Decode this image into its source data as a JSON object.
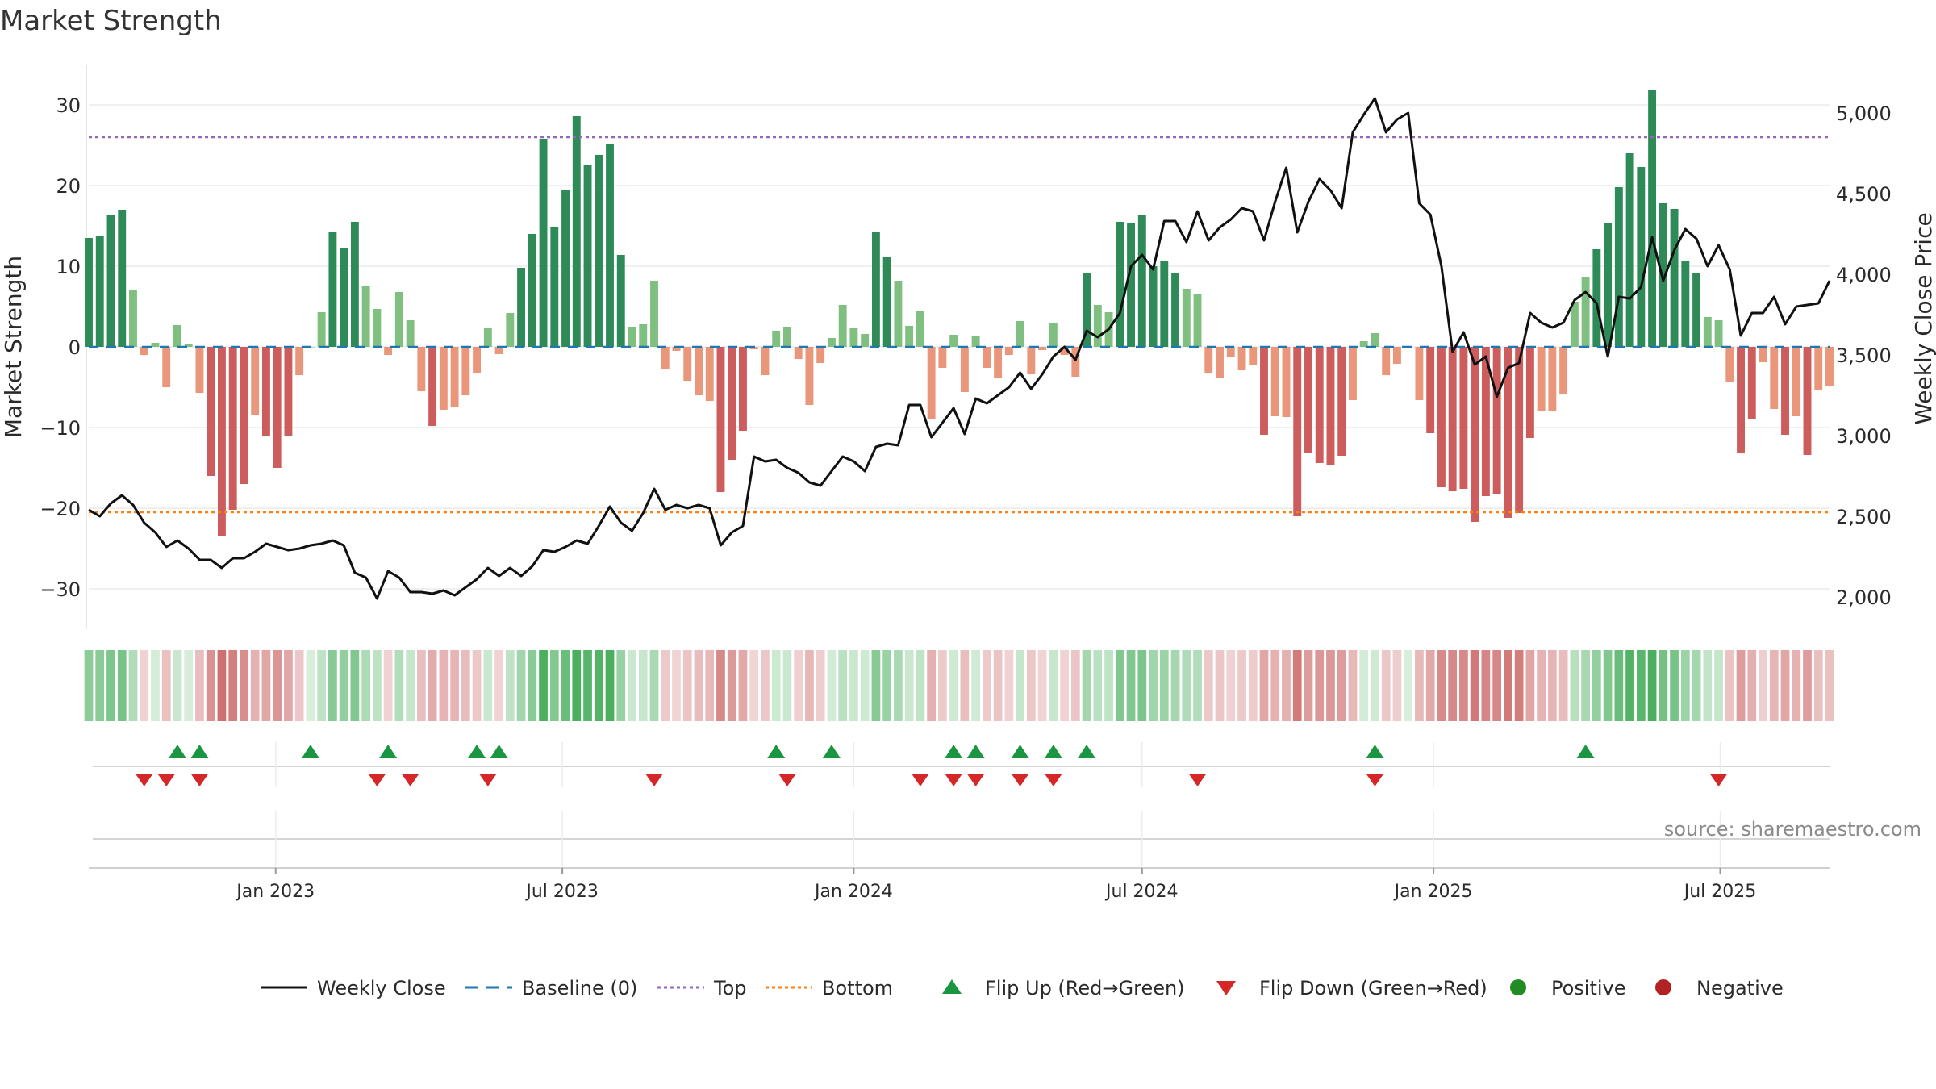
{
  "title": "Market Strength",
  "source": "source: sharemaestro.com",
  "chart_data": {
    "type": "bar",
    "ylabel": "Market Strength",
    "y2label": "Weekly Close Price",
    "ylim": [
      -35,
      35
    ],
    "y2lim": [
      1800,
      5300
    ],
    "yticks": [
      30,
      20,
      10,
      0,
      -10,
      -20,
      -30
    ],
    "ytick_labels": [
      "30",
      "20",
      "10",
      "0",
      "−10",
      "−20",
      "−30"
    ],
    "y2ticks": [
      5000,
      4500,
      4000,
      3500,
      3000,
      2500,
      2000
    ],
    "y2tick_labels": [
      "5,000",
      "4,500",
      "4,000",
      "3,500",
      "3,000",
      "2,500",
      "2,000"
    ],
    "x_start": "2022-09-05",
    "x_end": "2025-09-08",
    "xtick_dates": [
      "2023-01-01",
      "2023-07-01",
      "2024-01-01",
      "2024-07-01",
      "2025-01-01",
      "2025-07-01"
    ],
    "xtick_labels": [
      "Jan 2023",
      "Jul 2023",
      "Jan 2024",
      "Jul 2024",
      "Jan 2025",
      "Jul 2025"
    ],
    "top_line": 26,
    "bottom_line": -20.5,
    "grid": true,
    "legend_position": "bottom",
    "colors": {
      "pos_strong": "#2e8b57",
      "pos_weak": "#7fbf7f",
      "neg_strong": "#cd5c5c",
      "neg_weak": "#e9967a",
      "close": "#111111",
      "baseline": "#1f77b4",
      "top": "#9467bd",
      "bottom": "#ff7f0e",
      "flip_up": "#1a9641",
      "flip_down": "#d62728",
      "positive": "#228b22",
      "negative": "#b22222"
    },
    "strength": [
      13.5,
      13.8,
      16.3,
      17,
      7,
      -1,
      0.5,
      -5,
      2.7,
      0.3,
      -5.7,
      -16,
      -23.5,
      -20.2,
      -17,
      -8.5,
      -11,
      -15,
      -11,
      -3.5,
      0,
      4.3,
      14.2,
      12.3,
      15.5,
      7.5,
      4.7,
      -1,
      6.8,
      3.3,
      -5.5,
      -9.8,
      -7.8,
      -7.5,
      -6,
      -3.3,
      2.3,
      -0.9,
      4.2,
      9.8,
      14,
      25.8,
      14.9,
      19.5,
      28.6,
      22.6,
      23.8,
      25.2,
      11.4,
      2.5,
      2.8,
      8.2,
      -2.8,
      -0.5,
      -4.2,
      -6,
      -6.7,
      -18,
      -14,
      -10.4,
      -0.3,
      -3.5,
      2,
      2.5,
      -1.5,
      -7.2,
      -2,
      1.1,
      5.2,
      2.4,
      1.6,
      14.2,
      11.2,
      8.2,
      2.6,
      4.4,
      -8.9,
      -2.6,
      1.5,
      -5.6,
      1.3,
      -2.6,
      -3.9,
      -1,
      3.2,
      -3.4,
      -0.4,
      2.9,
      -1,
      -3.7,
      9.1,
      5.2,
      4.3,
      15.5,
      15.3,
      16.3,
      10,
      10.7,
      9.1,
      7.2,
      6.6,
      -3.2,
      -3.8,
      -1.2,
      -2.9,
      -2.2,
      -10.9,
      -8.6,
      -8.7,
      -21,
      -13.1,
      -14.4,
      -14.6,
      -13.5,
      -6.6,
      0.7,
      1.7,
      -3.5,
      -2.1,
      0,
      -6.6,
      -10.7,
      -17.4,
      -17.9,
      -17.6,
      -21.7,
      -18.5,
      -18.3,
      -21.2,
      -20.6,
      -11.3,
      -8,
      -7.9,
      -5.9,
      5.6,
      8.7,
      12.1,
      15.3,
      19.8,
      24,
      22.3,
      31.8,
      17.8,
      17.1,
      10.6,
      9.2,
      3.7,
      3.3,
      -4.3,
      -13.1,
      -9,
      -1.9,
      -7.7,
      -10.9,
      -8.6,
      -13.4,
      -5.3,
      -4.9
    ],
    "closes": [
      2540,
      2500,
      2580,
      2630,
      2570,
      2460,
      2400,
      2310,
      2350,
      2300,
      2230,
      2230,
      2180,
      2240,
      2240,
      2280,
      2330,
      2310,
      2290,
      2300,
      2320,
      2330,
      2350,
      2320,
      2150,
      2120,
      1990,
      2160,
      2120,
      2030,
      2030,
      2020,
      2040,
      2010,
      2060,
      2110,
      2180,
      2130,
      2180,
      2130,
      2190,
      2290,
      2280,
      2310,
      2350,
      2330,
      2440,
      2560,
      2460,
      2410,
      2520,
      2670,
      2540,
      2570,
      2550,
      2570,
      2550,
      2320,
      2400,
      2440,
      2870,
      2840,
      2850,
      2800,
      2770,
      2710,
      2690,
      2780,
      2870,
      2840,
      2780,
      2930,
      2950,
      2940,
      3190,
      3190,
      2990,
      3080,
      3170,
      3010,
      3230,
      3200,
      3250,
      3300,
      3390,
      3290,
      3380,
      3490,
      3550,
      3470,
      3650,
      3610,
      3660,
      3760,
      4050,
      4120,
      4030,
      4330,
      4330,
      4200,
      4390,
      4210,
      4290,
      4340,
      4410,
      4390,
      4210,
      4450,
      4660,
      4260,
      4450,
      4590,
      4520,
      4410,
      4880,
      4990,
      5090,
      4880,
      4960,
      5000,
      4440,
      4370,
      4050,
      3520,
      3640,
      3440,
      3490,
      3240,
      3420,
      3450,
      3760,
      3700,
      3670,
      3700,
      3840,
      3890,
      3820,
      3490,
      3860,
      3850,
      3920,
      4230,
      3960,
      4150,
      4280,
      4220,
      4050,
      4180,
      4030,
      3620,
      3760,
      3760,
      3860,
      3690,
      3800,
      3810,
      3820,
      3960
    ],
    "flip_up_weeks": [
      8,
      10,
      20,
      27,
      35,
      37,
      62,
      67,
      78,
      80,
      84,
      87,
      90,
      116,
      135
    ],
    "flip_down_weeks": [
      5,
      7,
      10,
      26,
      29,
      36,
      51,
      63,
      75,
      78,
      80,
      84,
      87,
      100,
      116,
      147
    ],
    "legend": [
      {
        "label": "Weekly Close",
        "symbol": "line",
        "color_key": "close"
      },
      {
        "label": "Baseline (0)",
        "symbol": "dash",
        "color_key": "baseline"
      },
      {
        "label": "Top",
        "symbol": "dot",
        "color_key": "top"
      },
      {
        "label": "Bottom",
        "symbol": "dot",
        "color_key": "bottom"
      },
      {
        "label": "Flip Up (Red→Green)",
        "symbol": "tri-up",
        "color_key": "flip_up"
      },
      {
        "label": "Flip Down (Green→Red)",
        "symbol": "tri-down",
        "color_key": "flip_down"
      },
      {
        "label": "Positive",
        "symbol": "circle",
        "color_key": "positive"
      },
      {
        "label": "Negative",
        "symbol": "circle",
        "color_key": "negative"
      }
    ]
  }
}
